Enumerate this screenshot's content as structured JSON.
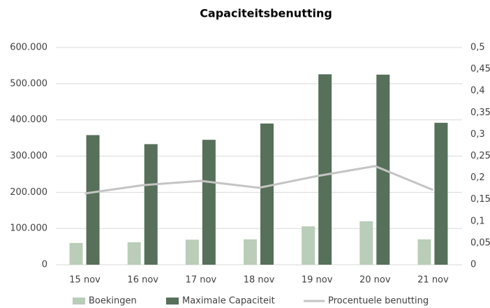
{
  "chart_data": {
    "type": "bar_line",
    "title": "Capaciteitsbenutting",
    "categories": [
      "15 nov",
      "16 nov",
      "17 nov",
      "18 nov",
      "19 nov",
      "20 nov",
      "21 nov"
    ],
    "series": [
      {
        "name": "Boekingen",
        "color": "#b9cdb8",
        "type": "bar",
        "values": [
          60000,
          62000,
          69000,
          70000,
          106000,
          120000,
          70000
        ]
      },
      {
        "name": "Maximale Capaciteit",
        "color": "#56705a",
        "type": "bar",
        "values": [
          358000,
          333000,
          345000,
          390000,
          526000,
          525000,
          392000
        ]
      },
      {
        "name": "Procentuele benutting",
        "color": "#c4c4c4",
        "type": "line",
        "axis": "y2",
        "values": [
          0.164,
          0.183,
          0.193,
          0.177,
          0.204,
          0.227,
          0.172
        ]
      }
    ],
    "ylim": [
      0,
      600000
    ],
    "yticks": [
      0,
      {
        "value": 100000,
        "label": "100.000"
      },
      {
        "value": 200000,
        "label": "200.000"
      },
      {
        "value": 300000,
        "label": "300.000"
      },
      {
        "value": 400000,
        "label": "400.000"
      },
      {
        "value": 500000,
        "label": "500.000"
      },
      {
        "value": 600000,
        "label": "600.000"
      }
    ],
    "y2lim": [
      0,
      0.5
    ],
    "y2ticks": [
      0,
      {
        "value": 0.05,
        "label": "0,05"
      },
      {
        "value": 0.1,
        "label": "0,1"
      },
      {
        "value": 0.15,
        "label": "0,15"
      },
      {
        "value": 0.2,
        "label": "0,2"
      },
      {
        "value": 0.25,
        "label": "0,25"
      },
      {
        "value": 0.3,
        "label": "0,3"
      },
      {
        "value": 0.35,
        "label": "0,35"
      },
      {
        "value": 0.4,
        "label": "0,4"
      },
      {
        "value": 0.45,
        "label": "0,45"
      },
      {
        "value": 0.5,
        "label": "0,5"
      }
    ],
    "grid": true,
    "legend": "bottom"
  }
}
